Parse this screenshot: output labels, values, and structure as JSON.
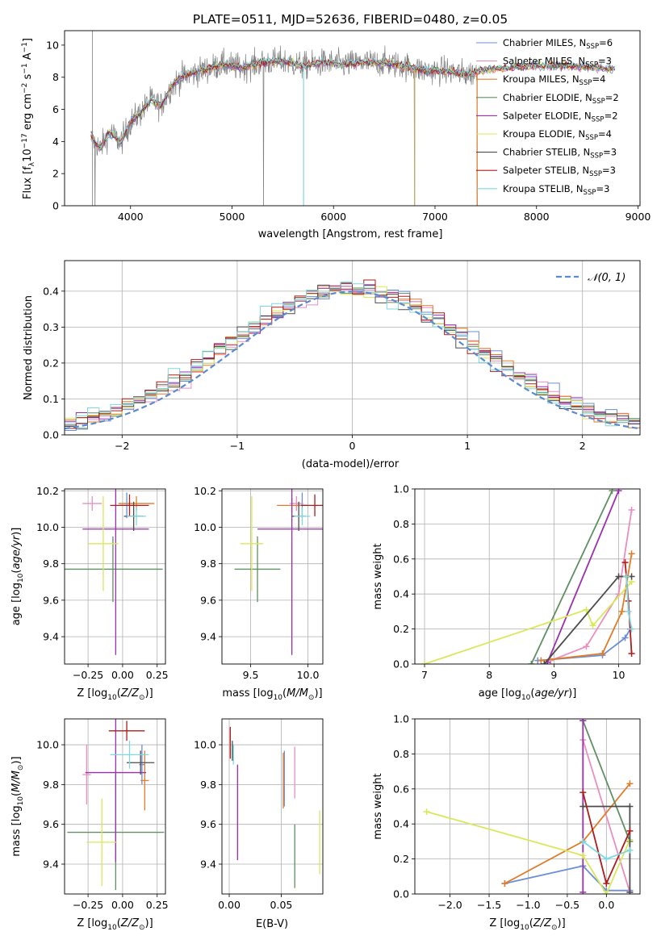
{
  "colors": {
    "grid": "#b0b0b0",
    "data": "#808080",
    "normal": "#5b8ad0",
    "series": [
      "#6b8fd6",
      "#e88fc0",
      "#e07c2a",
      "#5f8f62",
      "#9c2fb0",
      "#d9e85b",
      "#4c4c4c",
      "#b01b1b",
      "#7fd8df"
    ]
  },
  "chart_data": [
    {
      "type": "line",
      "title": "PLATE=0511, MJD=52636, FIBERID=0480, z=0.05",
      "xlabel": "wavelength [Angstrom, rest frame]",
      "ylabel": "Flux [f_λ10^-17 erg cm^-2 s^-1 A^-1]",
      "xlim": [
        3350,
        9020
      ],
      "ylim": [
        0,
        10.9
      ],
      "xticks": [
        "4000",
        "5000",
        "6000",
        "7000",
        "8000",
        "9000"
      ],
      "yticks": [
        "0",
        "2",
        "4",
        "6",
        "8",
        "10"
      ],
      "legend_position": "upper right",
      "legend": [
        {
          "base": "Chabrier MILES, N",
          "n": "6"
        },
        {
          "base": "Salpeter MILES, N",
          "n": "3"
        },
        {
          "base": "Kroupa MILES, N",
          "n": "4"
        },
        {
          "base": "Chabrier ELODIE, N",
          "n": "2"
        },
        {
          "base": "Salpeter ELODIE, N",
          "n": "2"
        },
        {
          "base": "Kroupa ELODIE, N",
          "n": "4"
        },
        {
          "base": "Chabrier STELIB, N",
          "n": "3"
        },
        {
          "base": "Salpeter STELIB, N",
          "n": "3"
        },
        {
          "base": "Kroupa STELIB, N",
          "n": "3"
        }
      ],
      "legend_sub": "SSP",
      "spectrum_profile": {
        "x": [
          3620,
          3700,
          3800,
          3900,
          4000,
          4100,
          4200,
          4300,
          4400,
          4500,
          4700,
          4900,
          5100,
          5300,
          5500,
          5700,
          5900,
          6100,
          6300,
          6500,
          6700,
          6900,
          7100,
          7300,
          7420
        ],
        "y": [
          4.2,
          3.6,
          4.6,
          3.9,
          5.2,
          5.8,
          6.6,
          6.2,
          7.4,
          8.0,
          8.4,
          8.8,
          8.6,
          8.9,
          9.0,
          8.7,
          8.9,
          8.8,
          8.9,
          8.9,
          8.7,
          8.4,
          8.4,
          8.2,
          8.3
        ]
      },
      "model_extension": {
        "x": [
          7420,
          7700,
          8000,
          8300,
          8600,
          8780
        ],
        "y": [
          8.4,
          8.6,
          8.7,
          8.7,
          8.6,
          8.5
        ]
      },
      "data_dips": [
        3650,
        5310,
        6800,
        7420
      ]
    },
    {
      "type": "bar",
      "xlabel": "(data-model)/error",
      "ylabel": "Normed distribution",
      "xlim": [
        -2.5,
        2.5
      ],
      "ylim": [
        0,
        0.485
      ],
      "xticks": [
        "−2",
        "−1",
        "0",
        "1",
        "2"
      ],
      "yticks": [
        "0.0",
        "0.1",
        "0.2",
        "0.3",
        "0.4"
      ],
      "bin_width": 0.1,
      "legend": [
        {
          "label": "𝒩(0, 1)",
          "style": "dashed"
        }
      ]
    },
    {
      "type": "scatter",
      "xlabel": "Z [log10(Z/Z⊙)]",
      "ylabel": "age  [log10(age/yr)]",
      "xlim": [
        -0.42,
        0.31
      ],
      "ylim": [
        9.25,
        10.21
      ],
      "xticks": [
        -0.25,
        0.0,
        0.25
      ],
      "xticklabels": [
        "−0.25",
        "0.00",
        "0.25"
      ],
      "yticks": [
        9.4,
        9.6,
        9.8,
        10.0,
        10.2
      ],
      "yticklabels": [
        "9.4",
        "9.6",
        "9.8",
        "10.0",
        "10.2"
      ],
      "points": [
        {
          "s": 0,
          "x": 0.03,
          "xerr": 0.05,
          "y": 10.12,
          "yerr": 0.07
        },
        {
          "s": 1,
          "x": -0.22,
          "xerr": 0.07,
          "y": 10.13,
          "yerr": 0.04
        },
        {
          "s": 2,
          "x": 0.1,
          "xerr": 0.13,
          "y": 10.13,
          "yerr": 0.04
        },
        {
          "s": 3,
          "x": -0.07,
          "xerr": 0.36,
          "y": 9.77,
          "yerr": 0.18
        },
        {
          "s": 4,
          "x": -0.05,
          "xerr": 0.24,
          "y": 9.99,
          "yerr": 0.69
        },
        {
          "s": 5,
          "x": -0.14,
          "xerr": 0.11,
          "y": 9.91,
          "yerr": 0.26
        },
        {
          "s": 6,
          "x": 0.08,
          "xerr": 0.07,
          "y": 10.06,
          "yerr": 0.08
        },
        {
          "s": 7,
          "x": 0.05,
          "xerr": 0.14,
          "y": 10.12,
          "yerr": 0.06
        },
        {
          "s": 8,
          "x": 0.1,
          "xerr": 0.07,
          "y": 10.06,
          "yerr": 0.05
        }
      ]
    },
    {
      "type": "scatter",
      "xlabel": "mass [log10(M/M⊙)]",
      "ylabel": "",
      "xlim": [
        9.25,
        10.13
      ],
      "ylim": [
        9.25,
        10.21
      ],
      "xticks": [
        9.5,
        10.0
      ],
      "xticklabels": [
        "9.5",
        "10.0"
      ],
      "yticks": [
        9.4,
        9.6,
        9.8,
        10.0,
        10.2
      ],
      "yticklabels": [
        "9.4",
        "9.6",
        "9.8",
        "10.0",
        "10.2"
      ],
      "points": [
        {
          "s": 0,
          "x": 9.95,
          "xerr": 0.05,
          "y": 10.12,
          "yerr": 0.07
        },
        {
          "s": 1,
          "x": 9.9,
          "xerr": 0.06,
          "y": 10.13,
          "yerr": 0.04
        },
        {
          "s": 2,
          "x": 9.86,
          "xerr": 0.13,
          "y": 10.12,
          "yerr": 0.04
        },
        {
          "s": 3,
          "x": 9.56,
          "xerr": 0.2,
          "y": 9.77,
          "yerr": 0.18
        },
        {
          "s": 4,
          "x": 9.86,
          "xerr": 0.3,
          "y": 9.99,
          "yerr": 0.69
        },
        {
          "s": 5,
          "x": 9.51,
          "xerr": 0.1,
          "y": 9.91,
          "yerr": 0.26
        },
        {
          "s": 6,
          "x": 9.92,
          "xerr": 0.06,
          "y": 10.06,
          "yerr": 0.08
        },
        {
          "s": 7,
          "x": 10.06,
          "xerr": 0.12,
          "y": 10.12,
          "yerr": 0.06
        },
        {
          "s": 8,
          "x": 9.95,
          "xerr": 0.07,
          "y": 10.06,
          "yerr": 0.05
        }
      ]
    },
    {
      "type": "line",
      "xlabel": "age  [log10(age/yr)]",
      "ylabel": "mass weight",
      "xlim": [
        6.85,
        10.33
      ],
      "ylim": [
        0,
        1.0
      ],
      "xticks": [
        7,
        8,
        9,
        10
      ],
      "xticklabels": [
        "7",
        "8",
        "9",
        "10"
      ],
      "yticks": [
        0,
        0.2,
        0.4,
        0.6,
        0.8,
        1.0
      ],
      "yticklabels": [
        "0.0",
        "0.2",
        "0.4",
        "0.6",
        "0.8",
        "1.0"
      ],
      "series": [
        {
          "s": 0,
          "x": [
            8.75,
            9.75,
            10.1,
            10.18
          ],
          "y": [
            0.02,
            0.05,
            0.15,
            0.2
          ]
        },
        {
          "s": 1,
          "x": [
            8.95,
            9.5,
            10.0,
            10.2
          ],
          "y": [
            0.02,
            0.1,
            0.4,
            0.88
          ]
        },
        {
          "s": 2,
          "x": [
            8.8,
            9.75,
            10.05,
            10.2
          ],
          "y": [
            0.02,
            0.06,
            0.3,
            0.63
          ]
        },
        {
          "s": 3,
          "x": [
            8.65,
            9.9
          ],
          "y": [
            0.0,
            0.99
          ]
        },
        {
          "s": 4,
          "x": [
            8.9,
            10.0
          ],
          "y": [
            0.01,
            0.99
          ]
        },
        {
          "s": 5,
          "x": [
            7.0,
            9.5,
            9.6,
            10.2
          ],
          "y": [
            0.0,
            0.31,
            0.22,
            0.47
          ]
        },
        {
          "s": 6,
          "x": [
            8.85,
            10.0,
            10.2
          ],
          "y": [
            0.0,
            0.5,
            0.5
          ]
        },
        {
          "s": 7,
          "x": [
            10.1,
            10.15,
            10.2
          ],
          "y": [
            0.58,
            0.36,
            0.06
          ]
        },
        {
          "s": 8,
          "x": [
            10.12,
            10.15,
            10.2
          ],
          "y": [
            0.5,
            0.3,
            0.2
          ]
        }
      ]
    },
    {
      "type": "scatter",
      "xlabel": "Z [log10(Z/Z⊙)]",
      "ylabel": "mass [log10(M/M⊙)]",
      "xlim": [
        -0.42,
        0.31
      ],
      "ylim": [
        9.25,
        10.13
      ],
      "xticks": [
        -0.25,
        0.0,
        0.25
      ],
      "xticklabels": [
        "−0.25",
        "0.00",
        "0.25"
      ],
      "yticks": [
        9.4,
        9.6,
        9.8,
        10.0
      ],
      "yticklabels": [
        "9.4",
        "9.6",
        "9.8",
        "10.0"
      ],
      "points": [
        {
          "s": 0,
          "x": 0.14,
          "xerr": 0.02,
          "y": 9.9,
          "yerr": 0.1
        },
        {
          "s": 1,
          "x": -0.26,
          "xerr": 0.03,
          "y": 9.85,
          "yerr": 0.15
        },
        {
          "s": 2,
          "x": 0.16,
          "xerr": 0.03,
          "y": 9.82,
          "yerr": 0.15
        },
        {
          "s": 3,
          "x": -0.05,
          "xerr": 0.35,
          "y": 9.56,
          "yerr": 0.29
        },
        {
          "s": 4,
          "x": -0.05,
          "xerr": 0.22,
          "y": 9.86,
          "yerr": 0.45
        },
        {
          "s": 5,
          "x": -0.15,
          "xerr": 0.11,
          "y": 9.51,
          "yerr": 0.22
        },
        {
          "s": 6,
          "x": 0.13,
          "xerr": 0.1,
          "y": 9.91,
          "yerr": 0.06
        },
        {
          "s": 7,
          "x": 0.03,
          "xerr": 0.13,
          "y": 10.07,
          "yerr": 0.05
        },
        {
          "s": 8,
          "x": 0.05,
          "xerr": 0.14,
          "y": 9.95,
          "yerr": 0.07
        }
      ]
    },
    {
      "type": "scatter",
      "xlabel": "E(B-V)",
      "ylabel": "",
      "xlim": [
        -0.007,
        0.09
      ],
      "ylim": [
        9.25,
        10.13
      ],
      "xticks": [
        0.0,
        0.05
      ],
      "xticklabels": [
        "0.00",
        "0.05"
      ],
      "yticks": [
        9.4,
        9.6,
        9.8,
        10.0
      ],
      "yticklabels": [
        "9.4",
        "9.6",
        "9.8",
        "10.0"
      ],
      "points": [
        {
          "s": 0,
          "x": 0.053,
          "xerr": 0,
          "y": 9.83,
          "yerr": 0.14
        },
        {
          "s": 1,
          "x": 0.063,
          "xerr": 0,
          "y": 9.86,
          "yerr": 0.13
        },
        {
          "s": 2,
          "x": 0.052,
          "xerr": 0,
          "y": 9.82,
          "yerr": 0.14
        },
        {
          "s": 3,
          "x": 0.063,
          "xerr": 0,
          "y": 9.44,
          "yerr": 0.16
        },
        {
          "s": 4,
          "x": 0.008,
          "xerr": 0,
          "y": 9.66,
          "yerr": 0.24
        },
        {
          "s": 5,
          "x": 0.087,
          "xerr": 0,
          "y": 9.51,
          "yerr": 0.16
        },
        {
          "s": 6,
          "x": 0.003,
          "xerr": 0,
          "y": 9.97,
          "yerr": 0.05
        },
        {
          "s": 7,
          "x": 0.001,
          "xerr": 0,
          "y": 10.01,
          "yerr": 0.08
        },
        {
          "s": 8,
          "x": 0.004,
          "xerr": 0,
          "y": 9.95,
          "yerr": 0.05
        }
      ]
    },
    {
      "type": "line",
      "xlabel": "Z [log10(Z/Z⊙)]",
      "ylabel": "mass weight",
      "xlim": [
        -2.45,
        0.43
      ],
      "ylim": [
        0,
        1.0
      ],
      "xticks": [
        -2.0,
        -1.5,
        -1.0,
        -0.5,
        0.0
      ],
      "xticklabels": [
        "−2.0",
        "−1.5",
        "−1.0",
        "−0.5",
        "0.0"
      ],
      "yticks": [
        0,
        0.2,
        0.4,
        0.6,
        0.8,
        1.0
      ],
      "yticklabels": [
        "0.0",
        "0.2",
        "0.4",
        "0.6",
        "0.8",
        "1.0"
      ],
      "series": [
        {
          "s": 0,
          "x": [
            -1.3,
            -0.3,
            0.0,
            0.3
          ],
          "y": [
            0.06,
            0.16,
            0.02,
            0.02
          ]
        },
        {
          "s": 1,
          "x": [
            -0.3,
            0.3
          ],
          "y": [
            0.88,
            0.01
          ]
        },
        {
          "s": 2,
          "x": [
            -1.3,
            -0.3,
            0.3
          ],
          "y": [
            0.06,
            0.3,
            0.63
          ]
        },
        {
          "s": 3,
          "x": [
            -0.3,
            0.3
          ],
          "y": [
            0.99,
            0.3
          ]
        },
        {
          "s": 4,
          "x": [
            -0.3,
            -0.3
          ],
          "y": [
            0.01,
            0.99
          ]
        },
        {
          "s": 5,
          "x": [
            -2.3,
            -0.3,
            0.0,
            0.3
          ],
          "y": [
            0.47,
            0.22,
            0.0,
            0.31
          ]
        },
        {
          "s": 6,
          "x": [
            -0.3,
            0.3,
            0.3
          ],
          "y": [
            0.5,
            0.5,
            0.01
          ]
        },
        {
          "s": 7,
          "x": [
            -0.3,
            0.0,
            0.3
          ],
          "y": [
            0.58,
            0.06,
            0.36
          ]
        },
        {
          "s": 8,
          "x": [
            -0.3,
            0.0,
            0.3
          ],
          "y": [
            0.3,
            0.2,
            0.25
          ]
        }
      ]
    }
  ]
}
